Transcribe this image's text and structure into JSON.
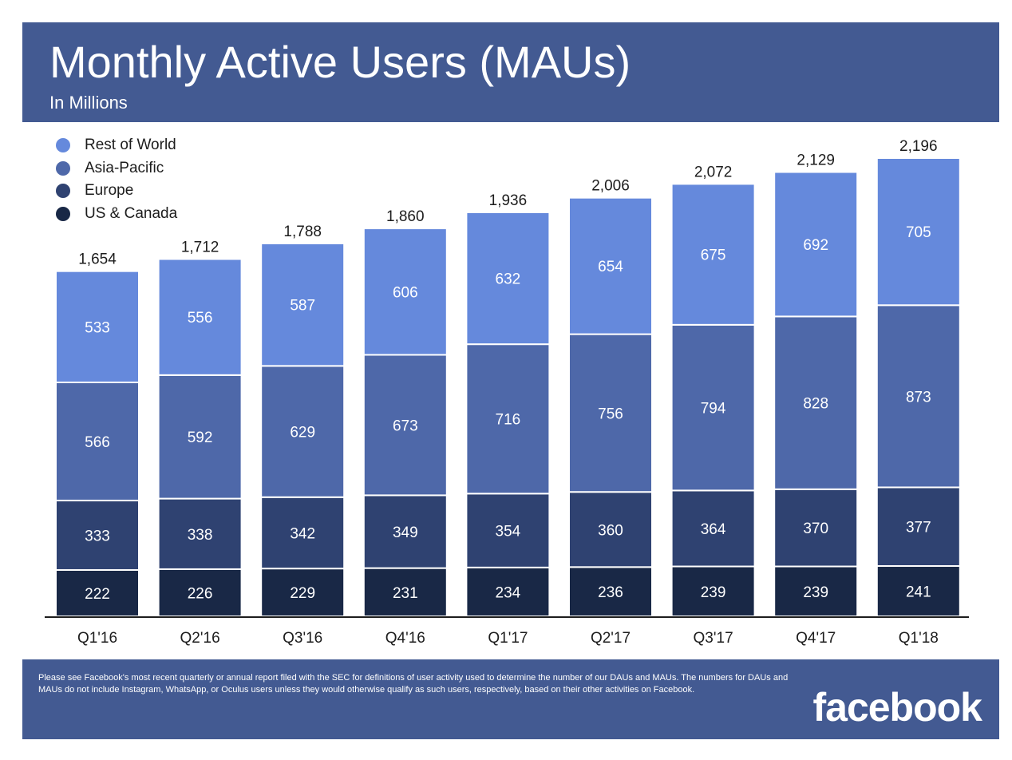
{
  "header": {
    "title": "Monthly Active Users (MAUs)",
    "subtitle": "In Millions"
  },
  "footer": {
    "disclaimer": "Please see Facebook's most recent quarterly or annual report filed with the SEC for definitions of user activity used to determine the number of our DAUs and MAUs. The numbers for DAUs and MAUs do not include Instagram, WhatsApp, or Oculus users unless they would otherwise qualify as such users, respectively, based on their other activities on Facebook.",
    "logo_text": "facebook"
  },
  "colors": {
    "header_background": "#435a92",
    "us_canada": "#192846",
    "europe": "#2f4271",
    "asia_pacific": "#4e68a9",
    "rest_of_world": "#6589dc"
  },
  "chart_data": {
    "type": "bar",
    "stacked": true,
    "title": "Monthly Active Users (MAUs)",
    "subtitle": "In Millions",
    "categories": [
      "Q1'16",
      "Q2'16",
      "Q3'16",
      "Q4'16",
      "Q1'17",
      "Q2'17",
      "Q3'17",
      "Q4'17",
      "Q1'18"
    ],
    "series": [
      {
        "name": "US & Canada",
        "color": "#192846",
        "values": [
          222,
          226,
          229,
          231,
          234,
          236,
          239,
          239,
          241
        ]
      },
      {
        "name": "Europe",
        "color": "#2f4271",
        "values": [
          333,
          338,
          342,
          349,
          354,
          360,
          364,
          370,
          377
        ]
      },
      {
        "name": "Asia-Pacific",
        "color": "#4e68a9",
        "values": [
          566,
          592,
          629,
          673,
          716,
          756,
          794,
          828,
          873
        ]
      },
      {
        "name": "Rest of World",
        "color": "#6589dc",
        "values": [
          533,
          556,
          587,
          606,
          632,
          654,
          675,
          692,
          705
        ]
      }
    ],
    "totals": [
      "1,654",
      "1,712",
      "1,788",
      "1,860",
      "1,936",
      "2,006",
      "2,072",
      "2,129",
      "2,196"
    ],
    "legend_order": [
      "Rest of World",
      "Asia-Pacific",
      "Europe",
      "US & Canada"
    ],
    "legend_position": "top-left",
    "grid": false,
    "ylim": [
      0,
      2196
    ]
  }
}
